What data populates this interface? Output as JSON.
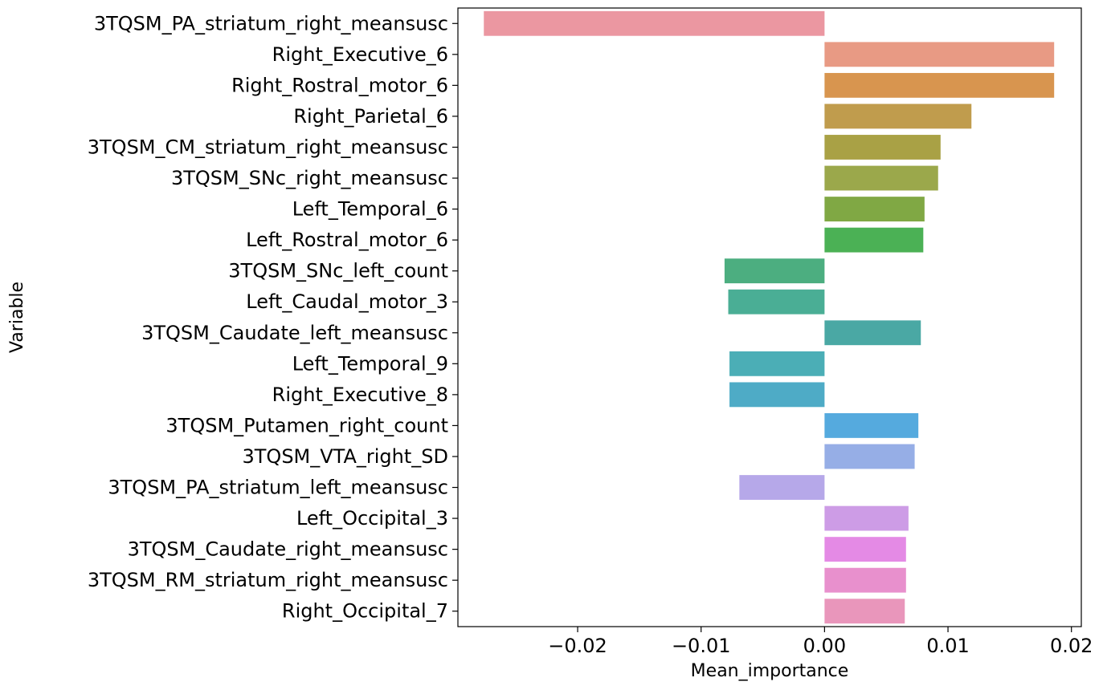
{
  "chart_data": {
    "type": "bar",
    "orientation": "horizontal",
    "xlabel": "Mean_importance",
    "ylabel": "Variable",
    "xlim": [
      -0.0297,
      0.0208
    ],
    "xticks": [
      -0.02,
      -0.01,
      0.0,
      0.01,
      0.02
    ],
    "xtick_labels": [
      "−0.02",
      "−0.01",
      "0.00",
      "0.01",
      "0.02"
    ],
    "grid": false,
    "legend": "none",
    "categories": [
      "3TQSM_PA_striatum_right_meansusc",
      "Right_Executive_6",
      "Right_Rostral_motor_6",
      "Right_Parietal_6",
      "3TQSM_CM_striatum_right_meansusc",
      "3TQSM_SNc_right_meansusc",
      "Left_Temporal_6",
      "Left_Rostral_motor_6",
      "3TQSM_SNc_left_count",
      "Left_Caudal_motor_3",
      "3TQSM_Caudate_left_meansusc",
      "Left_Temporal_9",
      "Right_Executive_8",
      "3TQSM_Putamen_right_count",
      "3TQSM_VTA_right_SD",
      "3TQSM_PA_striatum_left_meansusc",
      "Left_Occipital_3",
      "3TQSM_Caudate_right_meansusc",
      "3TQSM_RM_striatum_right_meansusc",
      "Right_Occipital_7"
    ],
    "values": [
      -0.0276,
      0.0186,
      0.0186,
      0.0119,
      0.0094,
      0.0092,
      0.0081,
      0.008,
      -0.0081,
      -0.0078,
      0.0078,
      -0.0077,
      -0.0077,
      0.0076,
      0.0073,
      -0.0069,
      0.0068,
      0.0066,
      0.0066,
      0.0065
    ],
    "colors": [
      "#eb97a1",
      "#e89a84",
      "#d8954f",
      "#c09c4d",
      "#a9a145",
      "#9ba84b",
      "#80a844",
      "#4bb155",
      "#4cae80",
      "#4aae95",
      "#4aa8a4",
      "#4baeb6",
      "#4eabc6",
      "#55aade",
      "#96aee6",
      "#b6a8e9",
      "#cd9ce6",
      "#e48ae5",
      "#e890cd",
      "#e996bb"
    ]
  }
}
